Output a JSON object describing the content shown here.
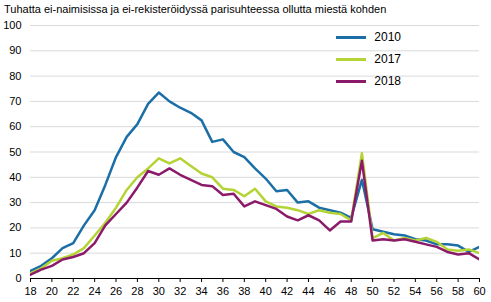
{
  "chart_data": {
    "type": "line",
    "title": "Tuhatta ei-naimisissa ja ei-rekisteröidyssä parisuhteessa ollutta miestä kohden",
    "x": [
      18,
      19,
      20,
      21,
      22,
      23,
      24,
      25,
      26,
      27,
      28,
      29,
      30,
      31,
      32,
      33,
      34,
      35,
      36,
      37,
      38,
      39,
      40,
      41,
      42,
      43,
      44,
      45,
      46,
      47,
      48,
      49,
      50,
      51,
      52,
      53,
      54,
      55,
      56,
      57,
      58,
      59,
      60
    ],
    "series": [
      {
        "name": "2010",
        "color": "#1b6fa6",
        "values": [
          3,
          5,
          8,
          12,
          14,
          21,
          27,
          37,
          48,
          56,
          61,
          69,
          73.5,
          70,
          67.5,
          65.5,
          62.5,
          54,
          55,
          50,
          48,
          43.5,
          39.5,
          34.5,
          35,
          30,
          30.5,
          28,
          27,
          26,
          24,
          39,
          19.5,
          18.5,
          17.5,
          17,
          15.5,
          15,
          13.5,
          13.5,
          13,
          10.5,
          12.5
        ]
      },
      {
        "name": "2017",
        "color": "#b4d334",
        "values": [
          2,
          4,
          7,
          8,
          9.5,
          12,
          17,
          22,
          28,
          35,
          40,
          43.5,
          47.5,
          45.5,
          47.5,
          44.5,
          41.5,
          40,
          35.5,
          35,
          32.5,
          35.5,
          30.5,
          28.5,
          28,
          27,
          25.5,
          27,
          26,
          25.5,
          23,
          49.5,
          16,
          18,
          15,
          16,
          15,
          16,
          14.5,
          11.5,
          11,
          11.5,
          10
        ]
      },
      {
        "name": "2018",
        "color": "#8c1a6b",
        "values": [
          1.5,
          3.5,
          5,
          7.5,
          8.5,
          10,
          14,
          21,
          25.5,
          30,
          36,
          42.5,
          41,
          43.5,
          41,
          39,
          37,
          36.5,
          33,
          33.5,
          28.5,
          30.5,
          29,
          27.5,
          24.5,
          23,
          25,
          23,
          19,
          22.5,
          22.5,
          46.5,
          15,
          15.5,
          15,
          15.5,
          14.5,
          13.5,
          12.5,
          10.5,
          9.5,
          10,
          7.5
        ]
      }
    ],
    "xlim": [
      18,
      60
    ],
    "xticks": [
      18,
      20,
      22,
      24,
      26,
      28,
      30,
      32,
      34,
      36,
      38,
      40,
      42,
      44,
      46,
      48,
      50,
      52,
      54,
      56,
      58,
      60
    ],
    "ylim": [
      0,
      100
    ],
    "yticks": [
      0,
      10,
      20,
      30,
      40,
      50,
      60,
      70,
      80,
      90,
      100
    ],
    "grid": true,
    "legend": "top-right"
  }
}
